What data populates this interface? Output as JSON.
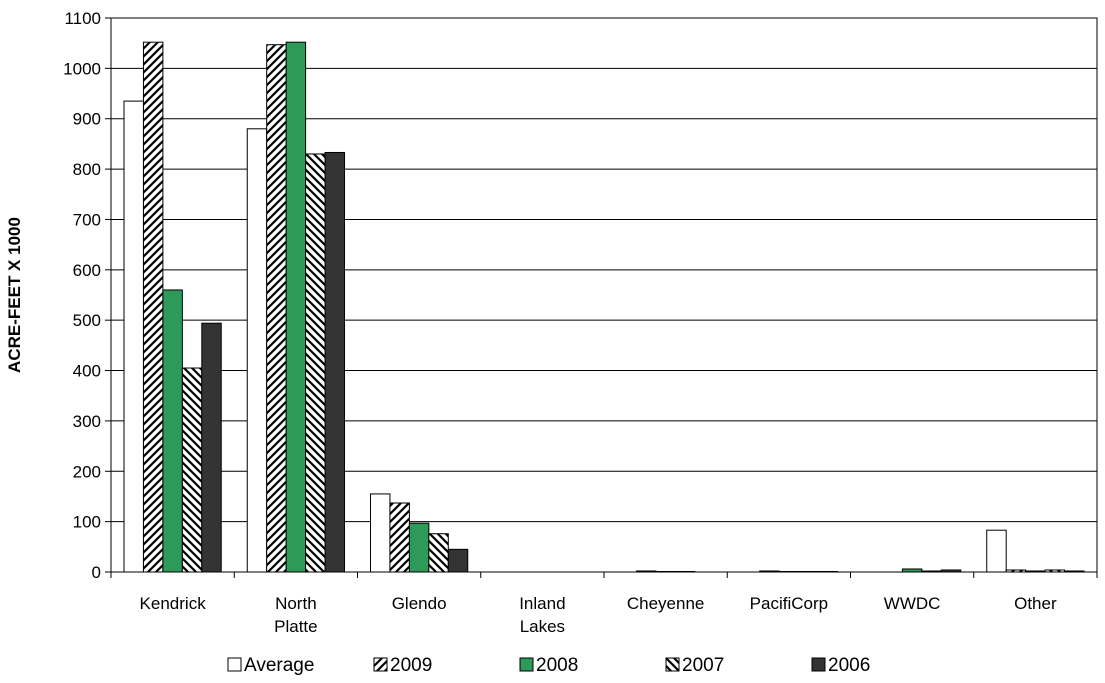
{
  "chart_data": {
    "type": "bar",
    "title": "",
    "xlabel": "",
    "ylabel": "ACRE-FEET X 1000",
    "ylim": [
      0,
      1100
    ],
    "ytick_step": 100,
    "yticks": [
      "0",
      "100",
      "200",
      "300",
      "400",
      "500",
      "600",
      "700",
      "800",
      "900",
      "1000",
      "1100"
    ],
    "grid": true,
    "legend_position": "bottom",
    "categories": [
      [
        "Kendrick"
      ],
      [
        "North",
        "Platte"
      ],
      [
        "Glendo"
      ],
      [
        "Inland",
        "Lakes"
      ],
      [
        "Cheyenne"
      ],
      [
        "PacifiCorp"
      ],
      [
        "WWDC"
      ],
      [
        "Other"
      ]
    ],
    "series": [
      {
        "name": "Average",
        "pattern": "white",
        "values": [
          935,
          880,
          155,
          0,
          0,
          0,
          0,
          83
        ]
      },
      {
        "name": "2009",
        "pattern": "hatch-forward",
        "values": [
          1052,
          1047,
          137,
          0,
          2,
          2,
          0,
          4
        ]
      },
      {
        "name": "2008",
        "pattern": "green",
        "values": [
          560,
          1052,
          97,
          0,
          1,
          1,
          6,
          2
        ]
      },
      {
        "name": "2007",
        "pattern": "hatch-back",
        "values": [
          405,
          830,
          76,
          0,
          1,
          1,
          2,
          4
        ]
      },
      {
        "name": "2006",
        "pattern": "dark",
        "values": [
          494,
          833,
          45,
          0,
          0,
          1,
          4,
          2
        ]
      }
    ],
    "colors": {
      "green": "#2e9a5a",
      "dark": "#333333",
      "white": "#ffffff",
      "stroke": "#000000"
    }
  }
}
